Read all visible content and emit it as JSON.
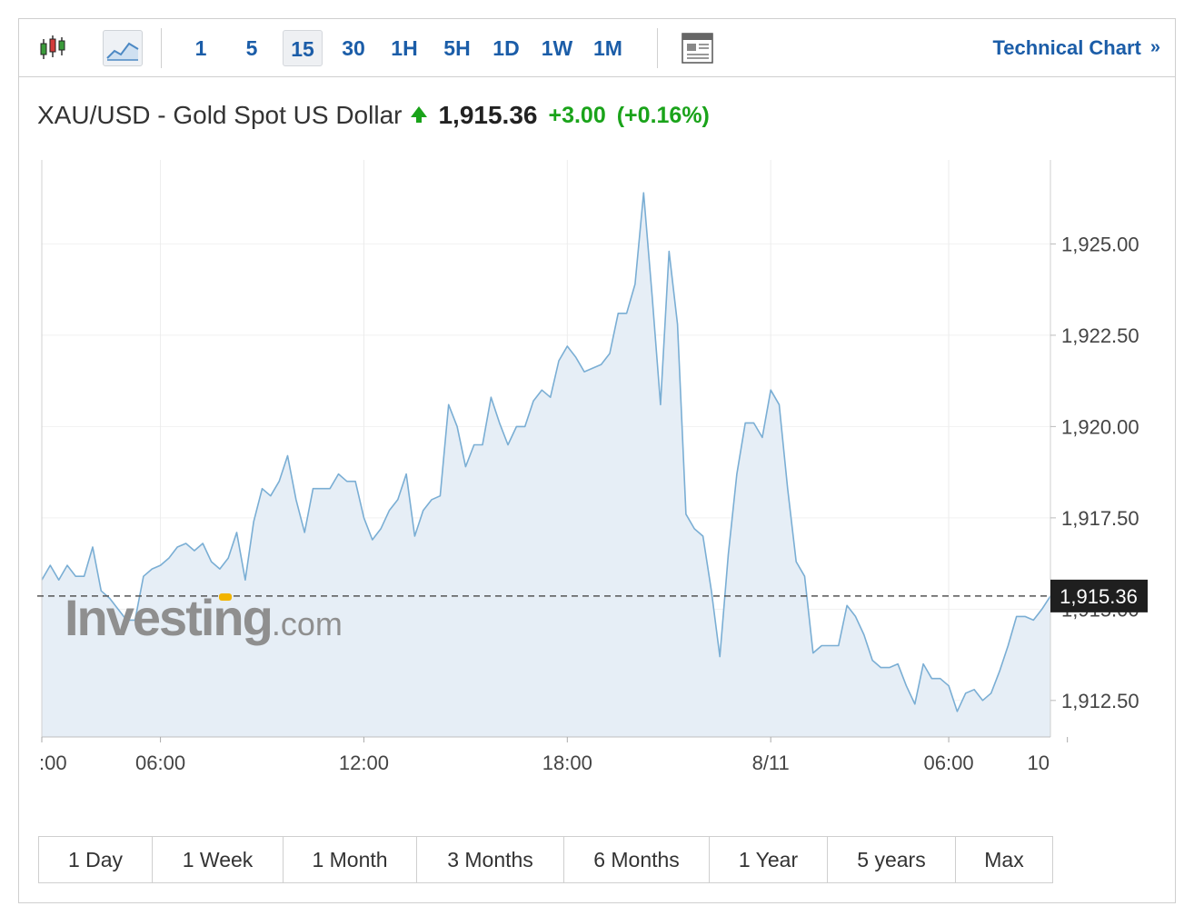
{
  "toolbar": {
    "candlestick_icon": "candlestick-icon",
    "area_icon": "area-chart-icon",
    "intervals": [
      "1",
      "5",
      "15",
      "30",
      "1H",
      "5H",
      "1D",
      "1W",
      "1M"
    ],
    "active_interval": "15",
    "news_icon": "news-icon",
    "technical_chart_label": "Technical Chart",
    "technical_chart_chevron": "»"
  },
  "header": {
    "instrument": "XAU/USD - Gold Spot US Dollar",
    "price": "1,915.36",
    "change": "+3.00",
    "change_pct": "(+0.16%)",
    "up_color": "#1aa31a"
  },
  "watermark": {
    "brand": "Investing",
    "suffix": ".com"
  },
  "ranges": [
    "1 Day",
    "1 Week",
    "1 Month",
    "3 Months",
    "6 Months",
    "1 Year",
    "5 years",
    "Max"
  ],
  "chart_data": {
    "type": "area",
    "title": "",
    "xlabel": "",
    "ylabel": "",
    "ylim": [
      1911.5,
      1927.3
    ],
    "yticks": [
      "1,912.50",
      "1,915.00",
      "1,917.50",
      "1,920.00",
      "1,922.50",
      "1,925.00"
    ],
    "ytick_values": [
      1912.5,
      1915.0,
      1917.5,
      1920.0,
      1922.5,
      1925.0
    ],
    "xticks": [
      ":00",
      "06:00",
      "12:00",
      "18:00",
      "8/11",
      "06:00",
      "10"
    ],
    "xtick_values": [
      0,
      14,
      38,
      62,
      86,
      107,
      121
    ],
    "xlim": [
      0,
      119
    ],
    "last_price": 1915.36,
    "last_price_label": "1,915.36",
    "line_color": "#7aaed4",
    "fill_color": "#e6eef6",
    "grid": true,
    "interval_minutes": 15,
    "series": [
      {
        "values": [
          1915.8,
          1916.2,
          1915.8,
          1916.2,
          1915.9,
          1915.9,
          1916.7,
          1915.5,
          1915.3,
          1915.0,
          1914.7,
          1914.7,
          1915.9,
          1916.1,
          1916.2,
          1916.4,
          1916.7,
          1916.8,
          1916.6,
          1916.8,
          1916.3,
          1916.1,
          1916.4,
          1917.1,
          1915.8,
          1917.4,
          1918.3,
          1918.1,
          1918.5,
          1919.2,
          1918.0,
          1917.1,
          1918.3,
          1918.3,
          1918.3,
          1918.7,
          1918.5,
          1918.5,
          1917.5,
          1916.9,
          1917.2,
          1917.7,
          1918.0,
          1918.7,
          1917.0,
          1917.7,
          1918.0,
          1918.1,
          1920.6,
          1920.0,
          1918.9,
          1919.5,
          1919.5,
          1920.8,
          1920.1,
          1919.5,
          1920.0,
          1920.0,
          1920.7,
          1921.0,
          1920.8,
          1921.8,
          1922.2,
          1921.9,
          1921.5,
          1921.6,
          1921.7,
          1922.0,
          1923.1,
          1923.1,
          1923.9,
          1926.4,
          1923.6,
          1920.6,
          1924.8,
          1922.8,
          1917.6,
          1917.2,
          1917.0,
          1915.5,
          1913.7,
          1916.5,
          1918.7,
          1920.1,
          1920.1,
          1919.7,
          1921.0,
          1920.6,
          1918.3,
          1916.3,
          1915.9,
          1913.8,
          1914.0,
          1914.0,
          1914.0,
          1915.1,
          1914.8,
          1914.3,
          1913.6,
          1913.4,
          1913.4,
          1913.5,
          1912.9,
          1912.4,
          1913.5,
          1913.1,
          1913.1,
          1912.9,
          1912.2,
          1912.7,
          1912.8,
          1912.5,
          1912.7,
          1913.3,
          1914.0,
          1914.8,
          1914.8,
          1914.7,
          1915.0,
          1915.36
        ]
      }
    ]
  }
}
